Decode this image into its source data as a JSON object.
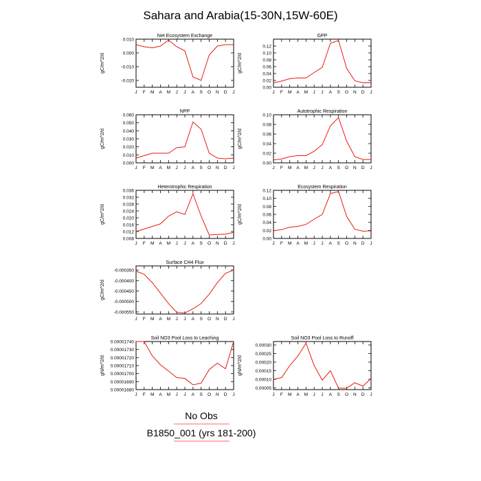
{
  "figure": {
    "title": "Sahara and Arabia(15-30N,15W-60E)",
    "legend_top": "No Obs",
    "legend_bottom": "B1850_001 (yrs 181-200)",
    "line_color": "#e8190f",
    "legend_line_color": "#ff6666"
  },
  "chart_data": [
    {
      "type": "line",
      "title": "Net Ecosystem Exchange",
      "ylabel": "gC/m^2/d",
      "categories": [
        "J",
        "F",
        "M",
        "A",
        "M",
        "J",
        "J",
        "A",
        "S",
        "O",
        "N",
        "D",
        "J"
      ],
      "ylim": [
        -0.025,
        0.01
      ],
      "yticks": [
        -0.02,
        -0.01,
        0.0,
        0.01
      ],
      "ytick_labels": [
        "-0.020",
        "-0.010",
        "0.000",
        "0.010"
      ],
      "series": [
        {
          "values": [
            0.006,
            0.0045,
            0.0037,
            0.005,
            0.0093,
            0.0045,
            0.0015,
            -0.0175,
            -0.02,
            -0.0015,
            0.005,
            0.006,
            0.006
          ]
        }
      ]
    },
    {
      "type": "line",
      "title": "GPP",
      "ylabel": "gC/m^2/d",
      "categories": [
        "J",
        "F",
        "M",
        "A",
        "M",
        "J",
        "J",
        "A",
        "S",
        "O",
        "N",
        "D",
        "J"
      ],
      "ylim": [
        0,
        0.14
      ],
      "yticks": [
        0,
        0.02,
        0.04,
        0.06,
        0.08,
        0.1,
        0.12
      ],
      "ytick_labels": [
        "0.00",
        "0.02",
        "0.04",
        "0.06",
        "0.08",
        "0.10",
        "0.12"
      ],
      "series": [
        {
          "values": [
            0.013,
            0.018,
            0.025,
            0.027,
            0.027,
            0.043,
            0.058,
            0.128,
            0.136,
            0.055,
            0.019,
            0.013,
            0.013
          ]
        }
      ]
    },
    {
      "type": "line",
      "title": "NPP",
      "ylabel": "gC/m^2/d",
      "categories": [
        "J",
        "F",
        "M",
        "A",
        "M",
        "J",
        "J",
        "A",
        "S",
        "O",
        "N",
        "D",
        "J"
      ],
      "ylim": [
        0,
        0.06
      ],
      "yticks": [
        0,
        0.01,
        0.02,
        0.03,
        0.04,
        0.05,
        0.06
      ],
      "ytick_labels": [
        "0.000",
        "0.010",
        "0.020",
        "0.030",
        "0.040",
        "0.050",
        "0.060"
      ],
      "series": [
        {
          "values": [
            0.006,
            0.009,
            0.012,
            0.012,
            0.012,
            0.019,
            0.02,
            0.051,
            0.042,
            0.012,
            0.006,
            0.005,
            0.006
          ]
        }
      ]
    },
    {
      "type": "line",
      "title": "Autotrophic Respiration",
      "ylabel": "gC/m^2/d",
      "categories": [
        "J",
        "F",
        "M",
        "A",
        "M",
        "J",
        "J",
        "A",
        "S",
        "O",
        "N",
        "D",
        "J"
      ],
      "ylim": [
        0,
        0.1
      ],
      "yticks": [
        0,
        0.02,
        0.04,
        0.06,
        0.08,
        0.1
      ],
      "ytick_labels": [
        "0.00",
        "0.02",
        "0.04",
        "0.06",
        "0.08",
        "0.10"
      ],
      "series": [
        {
          "values": [
            0.006,
            0.008,
            0.013,
            0.015,
            0.015,
            0.024,
            0.038,
            0.077,
            0.094,
            0.045,
            0.013,
            0.007,
            0.007
          ]
        }
      ]
    },
    {
      "type": "line",
      "title": "Heterotrophic Respiration",
      "ylabel": "gC/m^2/d",
      "categories": [
        "J",
        "F",
        "M",
        "A",
        "M",
        "J",
        "J",
        "A",
        "S",
        "O",
        "N",
        "D",
        "J"
      ],
      "ylim": [
        0.008,
        0.036
      ],
      "yticks": [
        0.008,
        0.012,
        0.016,
        0.02,
        0.024,
        0.028,
        0.032,
        0.036
      ],
      "ytick_labels": [
        "0.008",
        "0.012",
        "0.016",
        "0.020",
        "0.024",
        "0.028",
        "0.032",
        "0.036"
      ],
      "series": [
        {
          "values": [
            0.012,
            0.0135,
            0.015,
            0.0165,
            0.021,
            0.0235,
            0.022,
            0.034,
            0.021,
            0.01,
            0.0103,
            0.0105,
            0.0115
          ]
        }
      ]
    },
    {
      "type": "line",
      "title": "Ecosystem Respiration",
      "ylabel": "gC/m^2/d",
      "categories": [
        "J",
        "F",
        "M",
        "A",
        "M",
        "J",
        "J",
        "A",
        "S",
        "O",
        "N",
        "D",
        "J"
      ],
      "ylim": [
        0,
        0.12
      ],
      "yticks": [
        0,
        0.02,
        0.04,
        0.06,
        0.08,
        0.1,
        0.12
      ],
      "ytick_labels": [
        "0.00",
        "0.02",
        "0.04",
        "0.06",
        "0.08",
        "0.10",
        "0.12"
      ],
      "series": [
        {
          "values": [
            0.019,
            0.022,
            0.028,
            0.03,
            0.035,
            0.048,
            0.06,
            0.112,
            0.117,
            0.055,
            0.023,
            0.018,
            0.019
          ]
        }
      ]
    },
    {
      "type": "line",
      "title": "Surface CH4 Flux",
      "ylabel": "gC/m^2/d",
      "categories": [
        "J",
        "F",
        "M",
        "A",
        "M",
        "J",
        "J",
        "A",
        "S",
        "O",
        "N",
        "D",
        "J"
      ],
      "ylim": [
        -0.00056,
        -0.00033
      ],
      "yticks": [
        -0.00055,
        -0.0005,
        -0.00045,
        -0.0004,
        -0.00035
      ],
      "ytick_labels": [
        "-0.000550",
        "-0.000500",
        "-0.000450",
        "-0.000400",
        "-0.000350"
      ],
      "series": [
        {
          "values": [
            -0.000355,
            -0.00037,
            -0.00041,
            -0.00046,
            -0.00051,
            -0.000552,
            -0.000555,
            -0.000535,
            -0.00051,
            -0.000465,
            -0.00041,
            -0.000365,
            -0.00035
          ]
        }
      ]
    },
    {
      "type": "line",
      "title": "Soil NO3 Pool Loss to Leaching",
      "ylabel": "gN/m^2/d",
      "categories": [
        "J",
        "F",
        "M",
        "A",
        "M",
        "J",
        "J",
        "A",
        "S",
        "O",
        "N",
        "D",
        "J"
      ],
      "ylim": [
        1.68e-05,
        1.74e-05
      ],
      "yticks": [
        1.68e-05,
        1.69e-05,
        1.7e-05,
        1.71e-05,
        1.72e-05,
        1.73e-05,
        1.74e-05
      ],
      "ytick_labels": [
        "0.00001680",
        "0.00001690",
        "0.00001700",
        "0.00001710",
        "0.00001720",
        "0.00001730",
        "0.00001740"
      ],
      "series": [
        {
          "values": [
            1.74e-05,
            1.74e-05,
            1.722e-05,
            1.711e-05,
            1.703e-05,
            1.695e-05,
            1.694e-05,
            1.686e-05,
            1.688e-05,
            1.705e-05,
            1.713e-05,
            1.706e-05,
            1.74e-05
          ]
        }
      ]
    },
    {
      "type": "line",
      "title": "Soil NO3 Pool Loss to Runoff",
      "ylabel": "gN/m^2/d",
      "categories": [
        "J",
        "F",
        "M",
        "A",
        "M",
        "J",
        "J",
        "A",
        "S",
        "O",
        "N",
        "D",
        "J"
      ],
      "ylim": [
        4e-05,
        0.00032
      ],
      "yticks": [
        5e-05,
        0.0001,
        0.00015,
        0.0002,
        0.00025,
        0.0003
      ],
      "ytick_labels": [
        "0.00005",
        "0.00010",
        "0.00015",
        "0.00020",
        "0.00025",
        "0.00030"
      ],
      "series": [
        {
          "values": [
            0.0001,
            0.00011,
            0.00018,
            0.000235,
            0.00031,
            0.00018,
            9.5e-05,
            0.00015,
            4.8e-05,
            4.8e-05,
            8e-05,
            6e-05,
            0.000105
          ]
        }
      ]
    }
  ]
}
